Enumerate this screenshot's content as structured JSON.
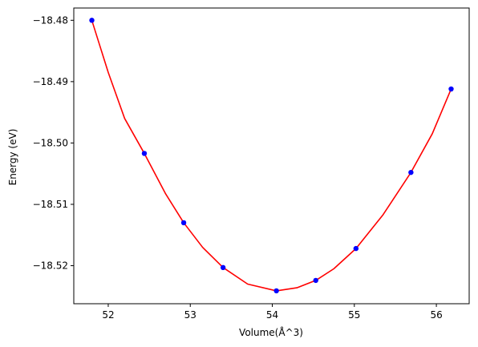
{
  "chart_data": {
    "type": "scatter",
    "title": "",
    "xlabel": "Volume(Å^3)",
    "ylabel": "Energy (eV)",
    "xlim": [
      51.58,
      56.4
    ],
    "ylim": [
      -18.5262,
      -18.478
    ],
    "grid": false,
    "x_ticks": [
      52,
      53,
      54,
      55,
      56
    ],
    "x_tick_labels": [
      "52",
      "53",
      "54",
      "55",
      "56"
    ],
    "y_ticks": [
      -18.48,
      -18.49,
      -18.5,
      -18.51,
      -18.52
    ],
    "y_tick_labels": [
      "−18.48",
      "−18.49",
      "−18.50",
      "−18.51",
      "−18.52"
    ],
    "series": [
      {
        "kind": "points",
        "color": "#0000ff",
        "x": [
          51.8,
          52.44,
          52.92,
          53.4,
          54.05,
          54.53,
          55.02,
          55.69,
          56.18
        ],
        "y": [
          -18.48,
          -18.5017,
          -18.513,
          -18.5203,
          -18.5241,
          -18.5224,
          -18.5172,
          -18.5048,
          -18.4912
        ]
      },
      {
        "kind": "fit-curve",
        "color": "#ff0000",
        "x": [
          51.8,
          52.0,
          52.2,
          52.44,
          52.7,
          52.92,
          53.15,
          53.4,
          53.7,
          54.05,
          54.3,
          54.53,
          54.75,
          55.02,
          55.35,
          55.69,
          55.95,
          56.18
        ],
        "y": [
          -18.48,
          -18.4885,
          -18.496,
          -18.5017,
          -18.5083,
          -18.513,
          -18.517,
          -18.5203,
          -18.523,
          -18.5241,
          -18.5236,
          -18.5224,
          -18.5205,
          -18.5172,
          -18.5117,
          -18.5048,
          -18.4985,
          -18.4912
        ]
      }
    ]
  }
}
